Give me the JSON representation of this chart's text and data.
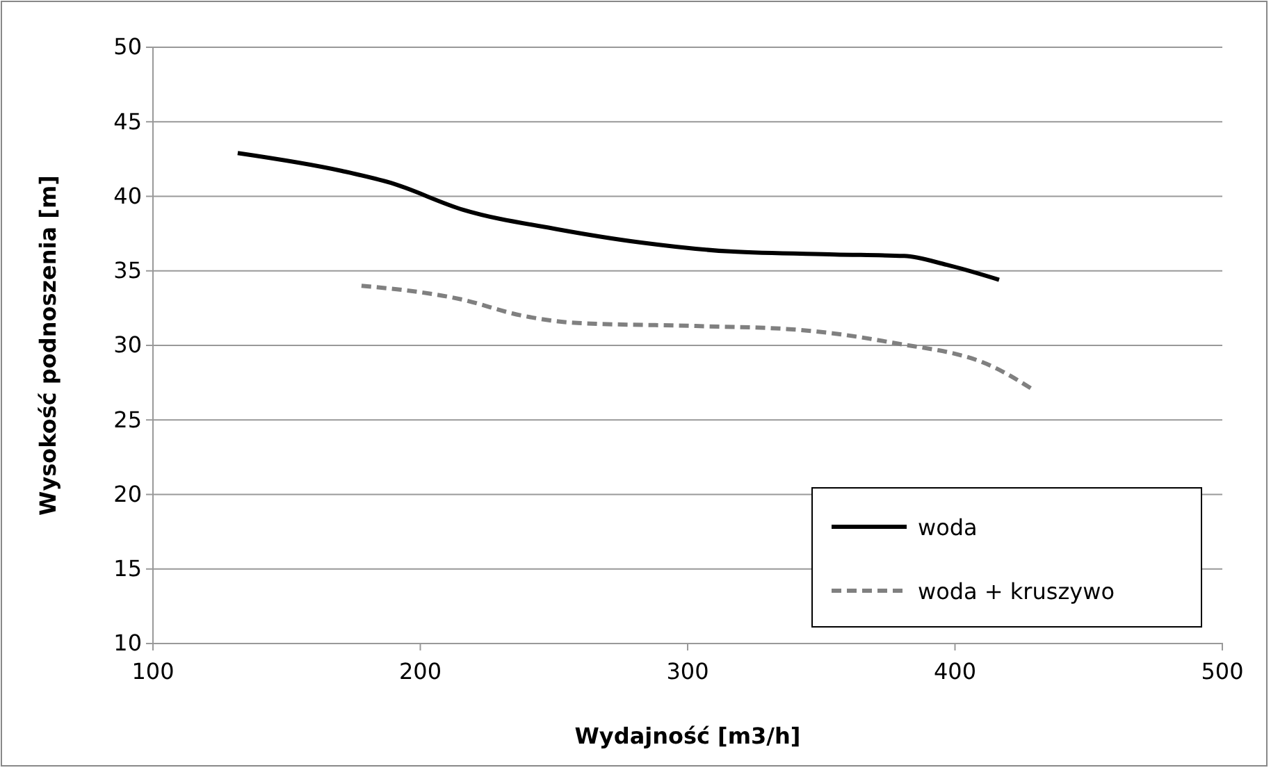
{
  "chart_data": {
    "type": "line",
    "xlabel": "Wydajność [m3/h]",
    "ylabel": "Wysokość podnoszenia [m]",
    "xlim": [
      100,
      500
    ],
    "xticks": [
      100,
      200,
      300,
      400,
      500
    ],
    "ylim": [
      10,
      50
    ],
    "yticks": [
      10,
      15,
      20,
      25,
      30,
      35,
      40,
      45,
      50
    ],
    "grid": "y",
    "legend": "bottom right",
    "series": [
      {
        "name": "woda",
        "color": "#000000",
        "line_style": "solid",
        "x": [
          131.7,
          170.7,
          189,
          216,
          251,
          282.6,
          316,
          355,
          381,
          397,
          416.5
        ],
        "values": [
          42.9,
          41.7,
          40.9,
          39.1,
          37.8,
          36.9,
          36.3,
          36.1,
          36.0,
          35.4,
          34.4
        ]
      },
      {
        "name": "woda + kruszywo",
        "color": "#808080",
        "line_style": "dashed",
        "x": [
          178,
          215,
          238,
          259,
          303,
          337,
          376,
          415,
          429.5
        ],
        "values": [
          34.0,
          33.1,
          32.0,
          31.5,
          31.3,
          31.1,
          30.2,
          28.5,
          27.0
        ]
      }
    ]
  }
}
